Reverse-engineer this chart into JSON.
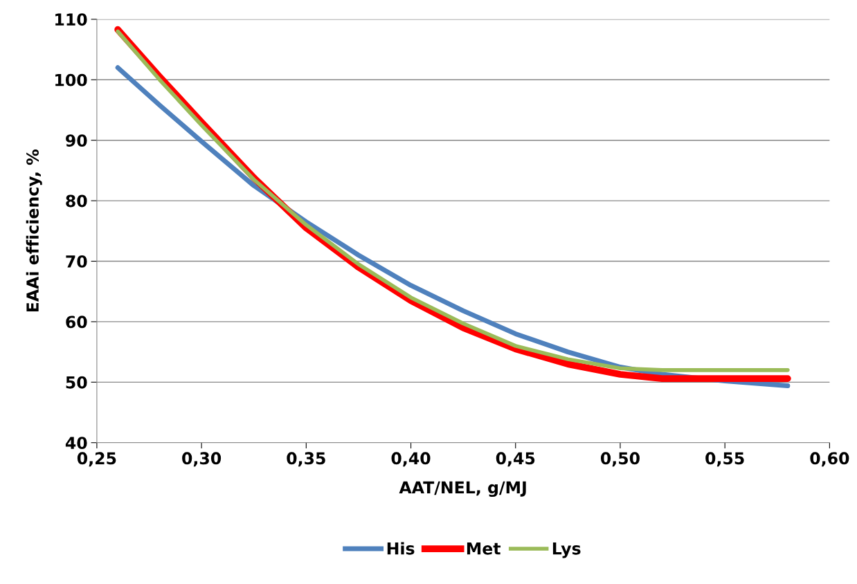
{
  "chart_data": {
    "type": "line",
    "xlabel": "AAT/NEL, g/MJ",
    "ylabel": "EAAi efficiency, %",
    "xlim": [
      0.25,
      0.6
    ],
    "ylim": [
      40,
      110
    ],
    "xticks": [
      {
        "value": 0.25,
        "label": "0,25"
      },
      {
        "value": 0.3,
        "label": "0,30"
      },
      {
        "value": 0.35,
        "label": "0,35"
      },
      {
        "value": 0.4,
        "label": "0,40"
      },
      {
        "value": 0.45,
        "label": "0,45"
      },
      {
        "value": 0.5,
        "label": "0,50"
      },
      {
        "value": 0.55,
        "label": "0,55"
      },
      {
        "value": 0.6,
        "label": "0,60"
      }
    ],
    "yticks": [
      40,
      50,
      60,
      70,
      80,
      90,
      100,
      110
    ],
    "grid": "y",
    "legend": "bottom",
    "marker": "none",
    "line_style": "solid",
    "x": [
      0.26,
      0.28,
      0.3,
      0.325,
      0.35,
      0.375,
      0.4,
      0.425,
      0.45,
      0.475,
      0.5,
      0.52,
      0.55,
      0.58
    ],
    "series": [
      {
        "name": "His",
        "color": "#4f81bd",
        "values": [
          102,
          95.8,
          89.8,
          82.5,
          76.5,
          71,
          66,
          61.8,
          58,
          55,
          52.5,
          51.3,
          50.2,
          49.4
        ]
      },
      {
        "name": "Met",
        "color": "#ff0000",
        "values": [
          108.3,
          100.5,
          93,
          83.8,
          75.5,
          69,
          63.5,
          59,
          55.5,
          53,
          51.3,
          50.6,
          50.6,
          50.6
        ]
      },
      {
        "name": "Lys",
        "color": "#9bbb59",
        "values": [
          108,
          100,
          92.5,
          83.5,
          76,
          69.5,
          64,
          59.7,
          56,
          53.8,
          52.3,
          52,
          52,
          52
        ]
      }
    ]
  }
}
